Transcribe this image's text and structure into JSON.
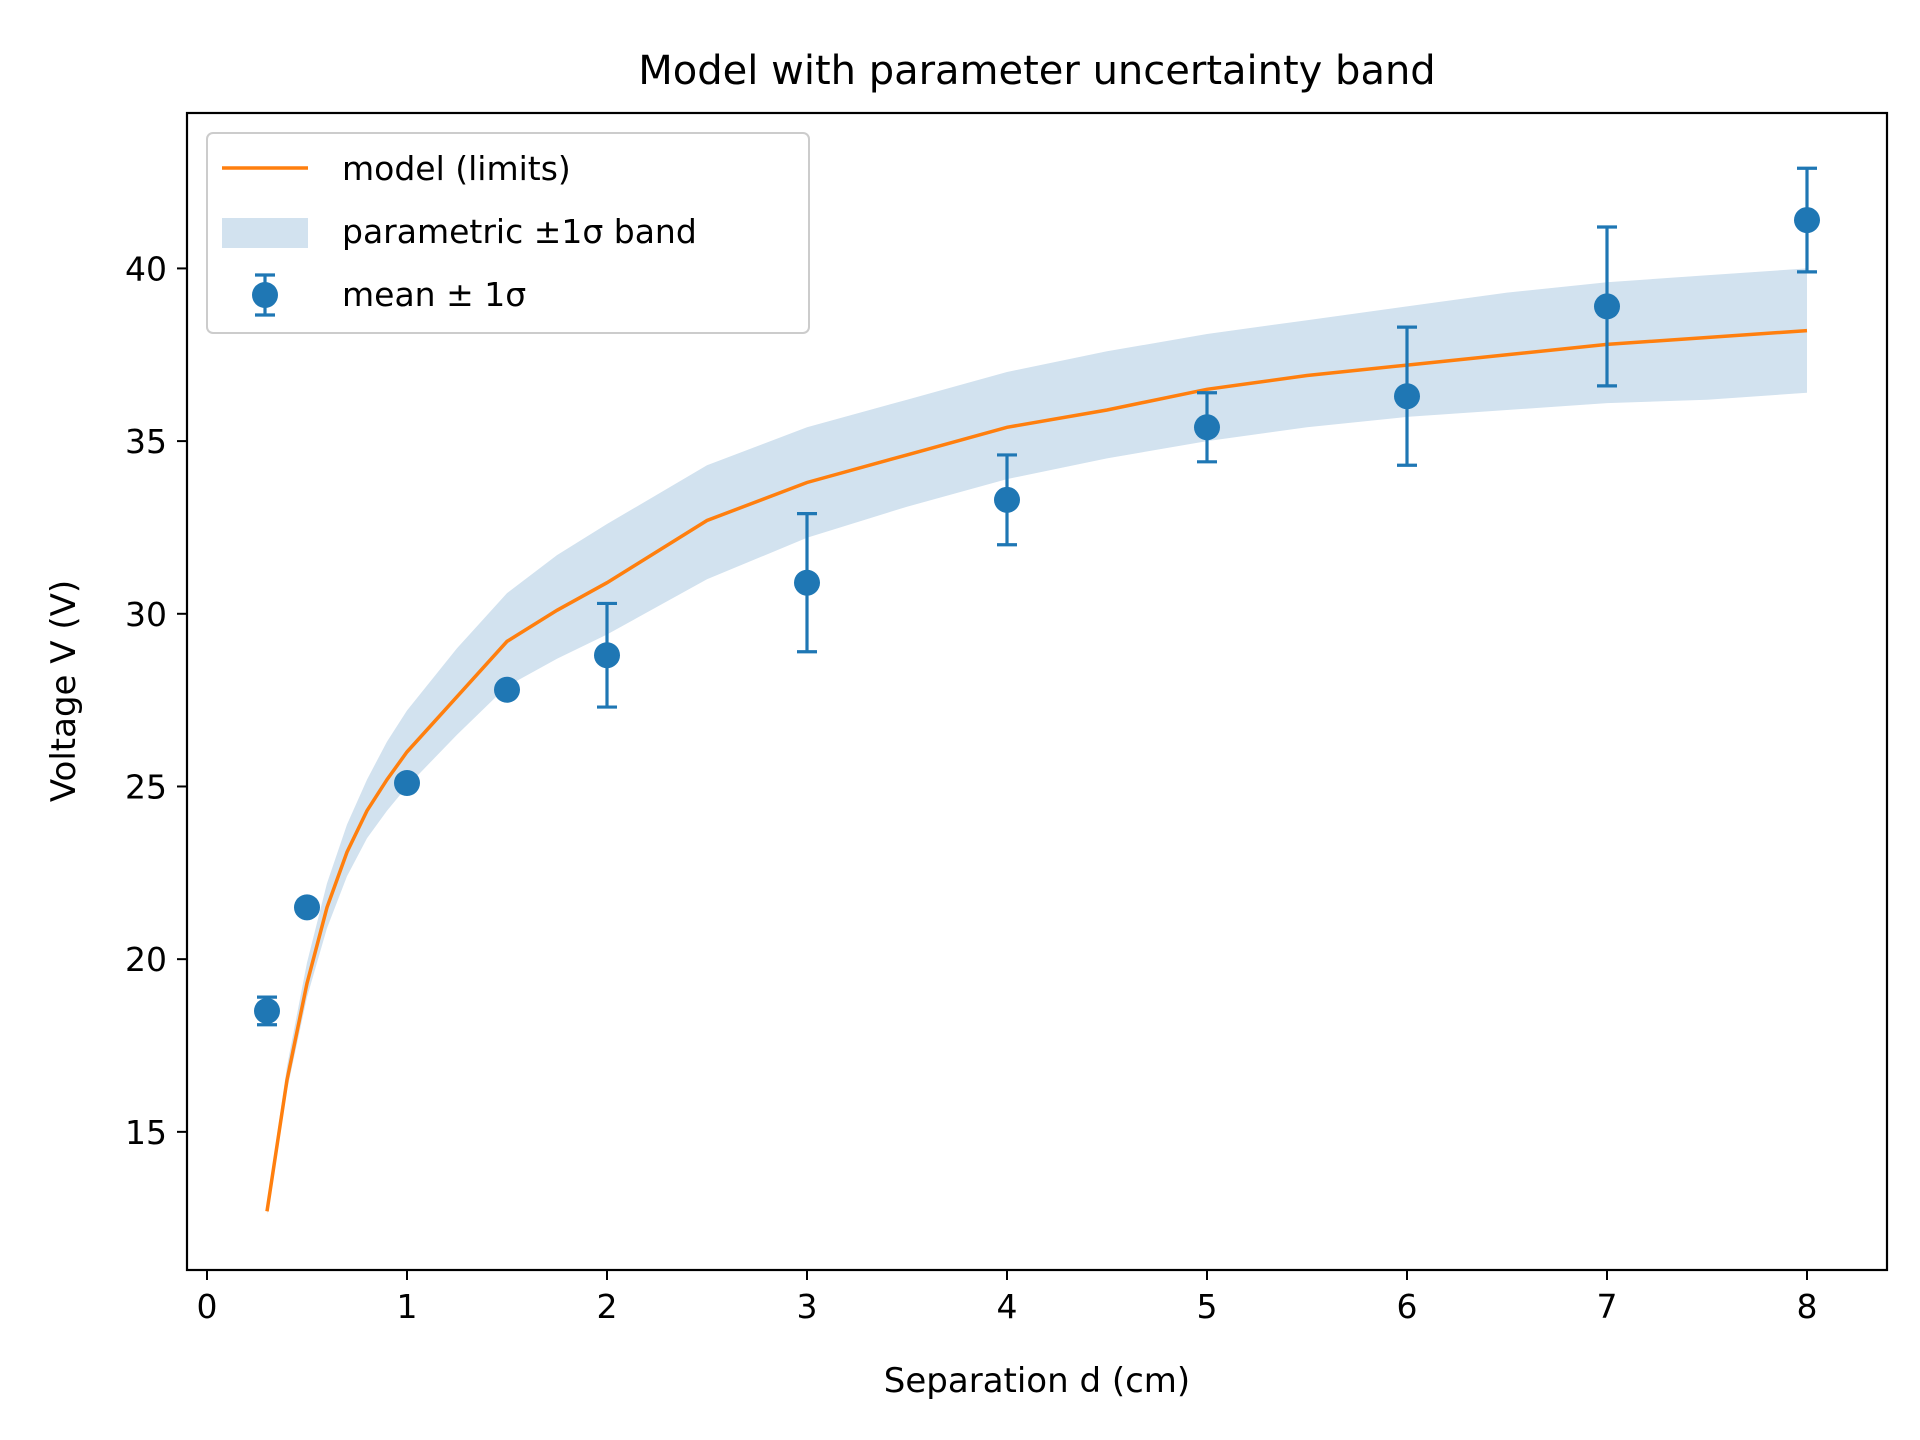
{
  "chart_data": {
    "type": "line",
    "title": "Model with parameter uncertainty band",
    "xlabel": "Separation d (cm)",
    "ylabel": "Voltage V (V)",
    "xlim": [
      -0.1,
      8.4
    ],
    "ylim": [
      11.0,
      44.5
    ],
    "xticks": [
      0,
      1,
      2,
      3,
      4,
      5,
      6,
      7,
      8
    ],
    "xtick_labels": [
      "0",
      "1",
      "2",
      "3",
      "4",
      "5",
      "6",
      "7",
      "8"
    ],
    "yticks": [
      15,
      20,
      25,
      30,
      35,
      40
    ],
    "ytick_labels": [
      "15",
      "20",
      "25",
      "30",
      "35",
      "40"
    ],
    "grid": false,
    "legend_position": "top-left",
    "legend": {
      "model": "model (limits)",
      "band": "parametric ±1σ band",
      "data": "mean ± 1σ"
    },
    "colors": {
      "model": "#ff7f0e",
      "data": "#1f77b4",
      "band": "#d2e2ef"
    },
    "model": {
      "x": [
        0.3,
        0.4,
        0.5,
        0.6,
        0.7,
        0.8,
        0.9,
        1.0,
        1.25,
        1.5,
        1.75,
        2.0,
        2.5,
        3.0,
        3.5,
        4.0,
        4.5,
        5.0,
        5.5,
        6.0,
        6.5,
        7.0,
        7.5,
        8.0
      ],
      "y": [
        12.7,
        16.5,
        19.3,
        21.5,
        23.1,
        24.3,
        25.2,
        26.0,
        27.6,
        29.2,
        30.1,
        30.9,
        32.7,
        33.8,
        34.6,
        35.4,
        35.9,
        36.5,
        36.9,
        37.2,
        37.5,
        37.8,
        38.0,
        38.2
      ]
    },
    "band": {
      "x": [
        0.3,
        0.4,
        0.5,
        0.6,
        0.7,
        0.8,
        0.9,
        1.0,
        1.25,
        1.5,
        1.75,
        2.0,
        2.5,
        3.0,
        3.5,
        4.0,
        4.5,
        5.0,
        5.5,
        6.0,
        6.5,
        7.0,
        7.5,
        8.0
      ],
      "upper": [
        12.9,
        16.9,
        19.9,
        22.2,
        23.9,
        25.2,
        26.3,
        27.2,
        29.0,
        30.6,
        31.7,
        32.6,
        34.3,
        35.4,
        36.2,
        37.0,
        37.6,
        38.1,
        38.5,
        38.9,
        39.3,
        39.6,
        39.8,
        40.0
      ],
      "lower": [
        12.6,
        16.2,
        18.9,
        20.9,
        22.4,
        23.5,
        24.3,
        25.0,
        26.5,
        27.9,
        28.7,
        29.4,
        31.0,
        32.2,
        33.1,
        33.9,
        34.5,
        35.0,
        35.4,
        35.7,
        35.9,
        36.1,
        36.2,
        36.4
      ]
    },
    "points": [
      {
        "x": 0.3,
        "y": 18.5,
        "err": 0.4
      },
      {
        "x": 0.5,
        "y": 21.5,
        "err": 0.0
      },
      {
        "x": 1.0,
        "y": 25.1,
        "err": 0.2
      },
      {
        "x": 1.5,
        "y": 27.8,
        "err": 0.0
      },
      {
        "x": 2.0,
        "y": 28.8,
        "err": 1.5
      },
      {
        "x": 3.0,
        "y": 30.9,
        "err": 2.0
      },
      {
        "x": 4.0,
        "y": 33.3,
        "err": 1.3
      },
      {
        "x": 5.0,
        "y": 35.4,
        "err": 1.0
      },
      {
        "x": 6.0,
        "y": 36.3,
        "err": 2.0
      },
      {
        "x": 7.0,
        "y": 38.9,
        "err": 2.3
      },
      {
        "x": 8.0,
        "y": 41.4,
        "err": 1.5
      }
    ]
  }
}
